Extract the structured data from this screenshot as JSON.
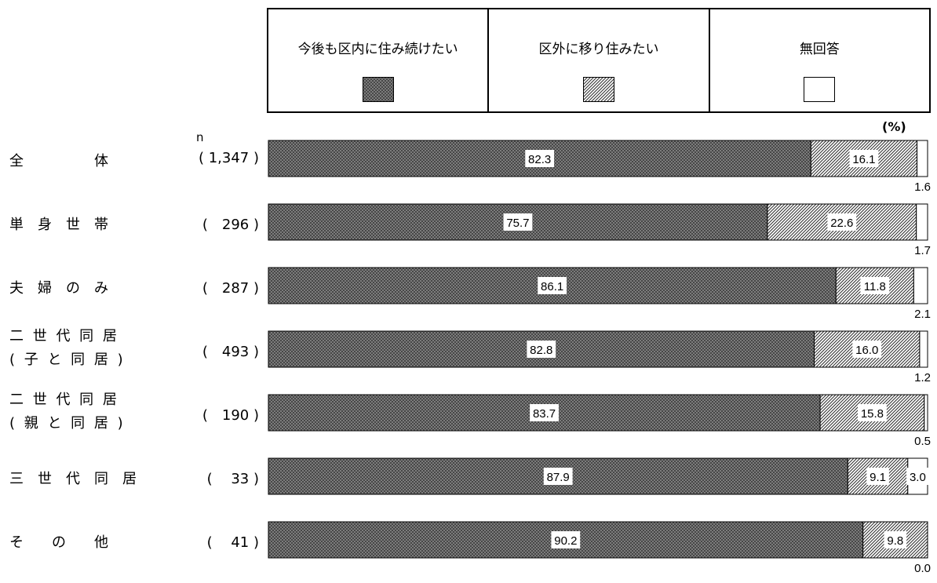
{
  "chart_data": {
    "type": "bar",
    "stacked": true,
    "orientation": "horizontal",
    "unit": "(%)",
    "n_header": "n",
    "legend": [
      {
        "name": "今後も区内に住み続けたい",
        "pattern": "crosshatch-dark",
        "color": "#7a7a7a"
      },
      {
        "name": "区外に移り住みたい",
        "pattern": "diagonal-hatch",
        "color": "#555555"
      },
      {
        "name": "無回答",
        "pattern": "blank",
        "color": "#ffffff"
      }
    ],
    "rows": [
      {
        "label": [
          "全　　　　　体"
        ],
        "n": "( 1,347 )",
        "values": [
          82.3,
          16.1,
          1.6
        ],
        "value_labels": [
          "82.3",
          "16.1",
          "1.6"
        ]
      },
      {
        "label": [
          "単　身　世　帯"
        ],
        "n": "(　296 )",
        "values": [
          75.7,
          22.6,
          1.7
        ],
        "value_labels": [
          "75.7",
          "22.6",
          "1.7"
        ]
      },
      {
        "label": [
          "夫　婦　の　み"
        ],
        "n": "(　287 )",
        "values": [
          86.1,
          11.8,
          2.1
        ],
        "value_labels": [
          "86.1",
          "11.8",
          "2.1"
        ]
      },
      {
        "label": [
          "二 世 代 同 居",
          "( 子 と 同 居 )"
        ],
        "n": "(　493 )",
        "values": [
          82.8,
          16.0,
          1.2
        ],
        "value_labels": [
          "82.8",
          "16.0",
          "1.2"
        ]
      },
      {
        "label": [
          "二 世 代 同 居",
          "( 親 と 同 居 )"
        ],
        "n": "(　190 )",
        "values": [
          83.7,
          15.8,
          0.5
        ],
        "value_labels": [
          "83.7",
          "15.8",
          "0.5"
        ]
      },
      {
        "label": [
          "三　世　代　同　居"
        ],
        "n": "(　 33 )",
        "values": [
          87.9,
          9.1,
          3.0
        ],
        "value_labels": [
          "87.9",
          "9.1",
          "3.0"
        ]
      },
      {
        "label": [
          "そ　　の　　他"
        ],
        "n": "(　 41 )",
        "values": [
          90.2,
          9.8,
          0.0
        ],
        "value_labels": [
          "90.2",
          "9.8",
          "0.0"
        ]
      }
    ]
  }
}
